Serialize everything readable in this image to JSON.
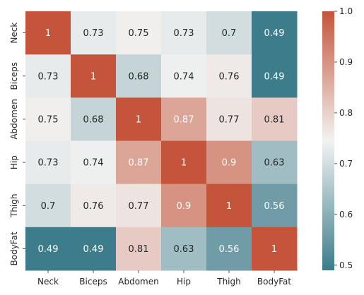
{
  "chart_data": {
    "type": "heatmap",
    "title": "",
    "xlabel": "",
    "ylabel": "",
    "x_categories": [
      "Neck",
      "Biceps",
      "Abdomen",
      "Hip",
      "Thigh",
      "BodyFat"
    ],
    "y_categories": [
      "Neck",
      "Biceps",
      "Abdomen",
      "Hip",
      "Thigh",
      "BodyFat"
    ],
    "values": [
      [
        1,
        0.73,
        0.75,
        0.73,
        0.7,
        0.49
      ],
      [
        0.73,
        1,
        0.68,
        0.74,
        0.76,
        0.49
      ],
      [
        0.75,
        0.68,
        1,
        0.87,
        0.77,
        0.81
      ],
      [
        0.73,
        0.74,
        0.87,
        1,
        0.9,
        0.63
      ],
      [
        0.7,
        0.76,
        0.77,
        0.9,
        1,
        0.56
      ],
      [
        0.49,
        0.49,
        0.81,
        0.63,
        0.56,
        1
      ]
    ],
    "annotations": [
      [
        "1",
        "0.73",
        "0.75",
        "0.73",
        "0.7",
        "0.49"
      ],
      [
        "0.73",
        "1",
        "0.68",
        "0.74",
        "0.76",
        "0.49"
      ],
      [
        "0.75",
        "0.68",
        "1",
        "0.87",
        "0.77",
        "0.81"
      ],
      [
        "0.73",
        "0.74",
        "0.87",
        "1",
        "0.9",
        "0.63"
      ],
      [
        "0.7",
        "0.76",
        "0.77",
        "0.9",
        "1",
        "0.56"
      ],
      [
        "0.49",
        "0.49",
        "0.81",
        "0.63",
        "0.56",
        "1"
      ]
    ],
    "colorbar": {
      "vmin": 0.49,
      "vmax": 1.0,
      "ticks": [
        0.5,
        0.6,
        0.7,
        0.8,
        0.9,
        1.0
      ],
      "tick_labels": [
        "0.5",
        "0.6",
        "0.7",
        "0.8",
        "0.9",
        "1.0"
      ]
    },
    "colormap": {
      "low": "#3d7c8a",
      "mid": "#f2f2f2",
      "high": "#c4553a"
    }
  }
}
